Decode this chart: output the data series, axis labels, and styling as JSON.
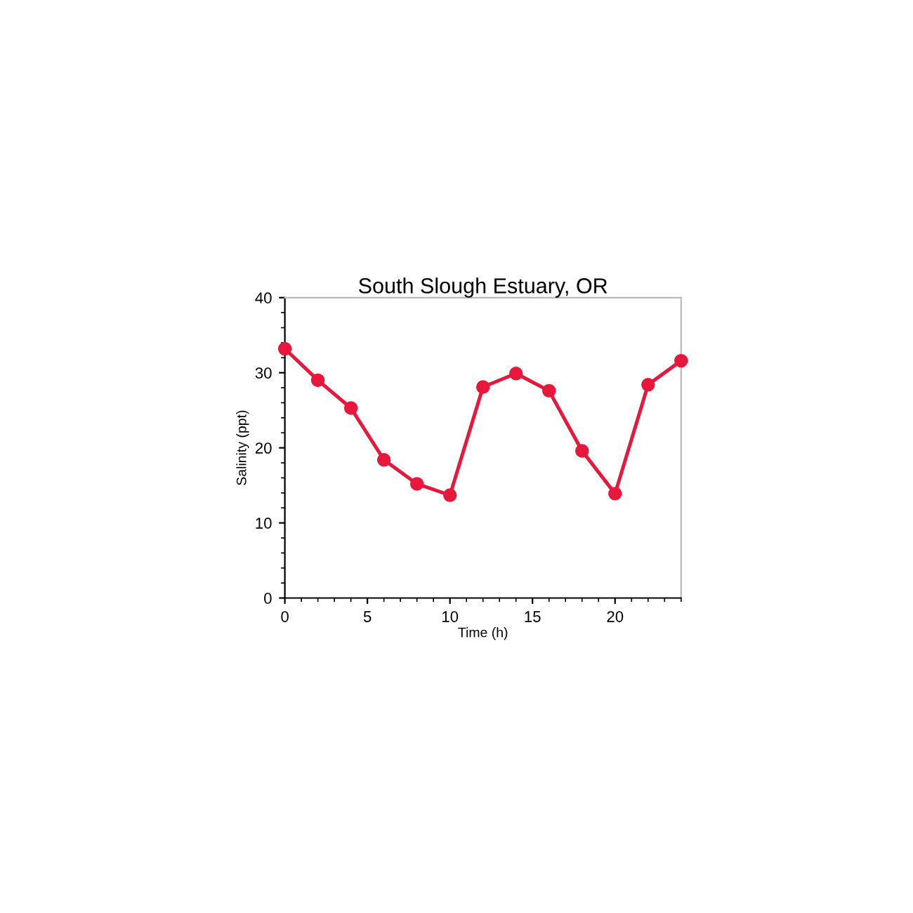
{
  "chart_data": {
    "type": "line",
    "title": "South Slough Estuary, OR",
    "xlabel": "Time (h)",
    "ylabel": "Salinity (ppt)",
    "x": [
      0,
      2,
      4,
      6,
      8,
      10,
      12,
      14,
      16,
      18,
      20,
      22,
      24
    ],
    "series": [
      {
        "color": "#e8173c",
        "values": [
          33.2,
          29.0,
          25.3,
          18.4,
          15.2,
          13.7,
          28.1,
          29.9,
          27.6,
          19.6,
          13.9,
          28.4,
          31.6
        ]
      }
    ],
    "xlim": [
      0,
      24
    ],
    "ylim": [
      0,
      40
    ],
    "xticks": [
      0,
      5,
      10,
      15,
      20
    ],
    "yticks": [
      0,
      10,
      20,
      30,
      40
    ],
    "marker": "circle",
    "line_style": "solid",
    "grid": false,
    "legend": false
  }
}
